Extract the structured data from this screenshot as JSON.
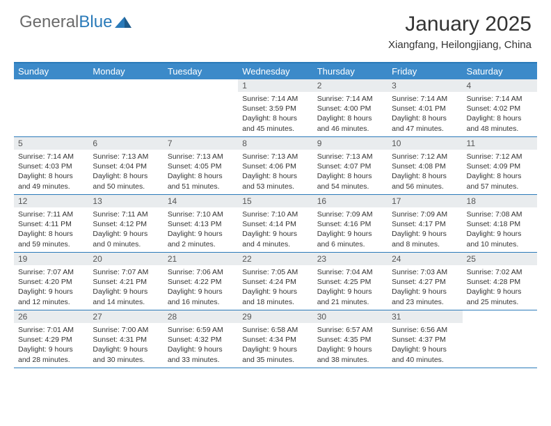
{
  "logo": {
    "text1": "General",
    "text2": "Blue"
  },
  "title": "January 2025",
  "location": "Xiangfang, Heilongjiang, China",
  "colors": {
    "brand_blue": "#3c8ac9",
    "border_blue": "#2a7ab9",
    "daynum_bg": "#e9ecee",
    "text": "#333333",
    "logo_gray": "#6a6a6a"
  },
  "day_names": [
    "Sunday",
    "Monday",
    "Tuesday",
    "Wednesday",
    "Thursday",
    "Friday",
    "Saturday"
  ],
  "weeks": [
    [
      {
        "n": "",
        "sr": "",
        "ss": "",
        "dh": "",
        "dm": ""
      },
      {
        "n": "",
        "sr": "",
        "ss": "",
        "dh": "",
        "dm": ""
      },
      {
        "n": "",
        "sr": "",
        "ss": "",
        "dh": "",
        "dm": ""
      },
      {
        "n": "1",
        "sr": "7:14 AM",
        "ss": "3:59 PM",
        "dh": "8",
        "dm": "45"
      },
      {
        "n": "2",
        "sr": "7:14 AM",
        "ss": "4:00 PM",
        "dh": "8",
        "dm": "46"
      },
      {
        "n": "3",
        "sr": "7:14 AM",
        "ss": "4:01 PM",
        "dh": "8",
        "dm": "47"
      },
      {
        "n": "4",
        "sr": "7:14 AM",
        "ss": "4:02 PM",
        "dh": "8",
        "dm": "48"
      }
    ],
    [
      {
        "n": "5",
        "sr": "7:14 AM",
        "ss": "4:03 PM",
        "dh": "8",
        "dm": "49"
      },
      {
        "n": "6",
        "sr": "7:13 AM",
        "ss": "4:04 PM",
        "dh": "8",
        "dm": "50"
      },
      {
        "n": "7",
        "sr": "7:13 AM",
        "ss": "4:05 PM",
        "dh": "8",
        "dm": "51"
      },
      {
        "n": "8",
        "sr": "7:13 AM",
        "ss": "4:06 PM",
        "dh": "8",
        "dm": "53"
      },
      {
        "n": "9",
        "sr": "7:13 AM",
        "ss": "4:07 PM",
        "dh": "8",
        "dm": "54"
      },
      {
        "n": "10",
        "sr": "7:12 AM",
        "ss": "4:08 PM",
        "dh": "8",
        "dm": "56"
      },
      {
        "n": "11",
        "sr": "7:12 AM",
        "ss": "4:09 PM",
        "dh": "8",
        "dm": "57"
      }
    ],
    [
      {
        "n": "12",
        "sr": "7:11 AM",
        "ss": "4:11 PM",
        "dh": "8",
        "dm": "59"
      },
      {
        "n": "13",
        "sr": "7:11 AM",
        "ss": "4:12 PM",
        "dh": "9",
        "dm": "0"
      },
      {
        "n": "14",
        "sr": "7:10 AM",
        "ss": "4:13 PM",
        "dh": "9",
        "dm": "2"
      },
      {
        "n": "15",
        "sr": "7:10 AM",
        "ss": "4:14 PM",
        "dh": "9",
        "dm": "4"
      },
      {
        "n": "16",
        "sr": "7:09 AM",
        "ss": "4:16 PM",
        "dh": "9",
        "dm": "6"
      },
      {
        "n": "17",
        "sr": "7:09 AM",
        "ss": "4:17 PM",
        "dh": "9",
        "dm": "8"
      },
      {
        "n": "18",
        "sr": "7:08 AM",
        "ss": "4:18 PM",
        "dh": "9",
        "dm": "10"
      }
    ],
    [
      {
        "n": "19",
        "sr": "7:07 AM",
        "ss": "4:20 PM",
        "dh": "9",
        "dm": "12"
      },
      {
        "n": "20",
        "sr": "7:07 AM",
        "ss": "4:21 PM",
        "dh": "9",
        "dm": "14"
      },
      {
        "n": "21",
        "sr": "7:06 AM",
        "ss": "4:22 PM",
        "dh": "9",
        "dm": "16"
      },
      {
        "n": "22",
        "sr": "7:05 AM",
        "ss": "4:24 PM",
        "dh": "9",
        "dm": "18"
      },
      {
        "n": "23",
        "sr": "7:04 AM",
        "ss": "4:25 PM",
        "dh": "9",
        "dm": "21"
      },
      {
        "n": "24",
        "sr": "7:03 AM",
        "ss": "4:27 PM",
        "dh": "9",
        "dm": "23"
      },
      {
        "n": "25",
        "sr": "7:02 AM",
        "ss": "4:28 PM",
        "dh": "9",
        "dm": "25"
      }
    ],
    [
      {
        "n": "26",
        "sr": "7:01 AM",
        "ss": "4:29 PM",
        "dh": "9",
        "dm": "28"
      },
      {
        "n": "27",
        "sr": "7:00 AM",
        "ss": "4:31 PM",
        "dh": "9",
        "dm": "30"
      },
      {
        "n": "28",
        "sr": "6:59 AM",
        "ss": "4:32 PM",
        "dh": "9",
        "dm": "33"
      },
      {
        "n": "29",
        "sr": "6:58 AM",
        "ss": "4:34 PM",
        "dh": "9",
        "dm": "35"
      },
      {
        "n": "30",
        "sr": "6:57 AM",
        "ss": "4:35 PM",
        "dh": "9",
        "dm": "38"
      },
      {
        "n": "31",
        "sr": "6:56 AM",
        "ss": "4:37 PM",
        "dh": "9",
        "dm": "40"
      },
      {
        "n": "",
        "sr": "",
        "ss": "",
        "dh": "",
        "dm": ""
      }
    ]
  ]
}
